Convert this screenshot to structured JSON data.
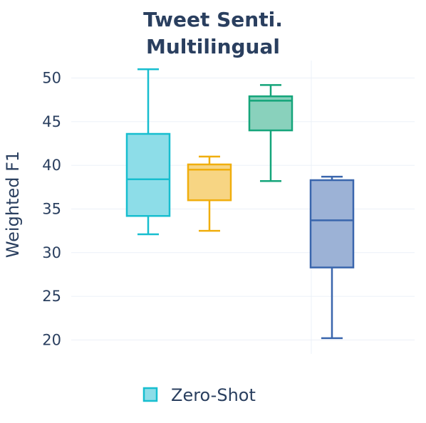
{
  "chart_data": {
    "type": "box",
    "title_lines": [
      "Tweet Senti.",
      "Multilingual"
    ],
    "xlabel": "",
    "ylabel": "Weighted F1",
    "ylim": [
      18.4,
      52.0
    ],
    "yticks": [
      20,
      25,
      30,
      35,
      40,
      45,
      50
    ],
    "grid": true,
    "legend_position": "bottom-center",
    "legend": [
      {
        "label": "Zero-Shot",
        "color": "#17becf"
      }
    ],
    "boxes": [
      {
        "min": 32.1,
        "q1": 34.2,
        "median": 38.4,
        "q3": 43.6,
        "max": 51.0,
        "color": "#17becf",
        "fill": "#8ddde8"
      },
      {
        "min": 32.5,
        "q1": 36.0,
        "median": 39.5,
        "q3": 40.1,
        "max": 41.0,
        "color": "#f0ae0d",
        "fill": "#f7d583"
      },
      {
        "min": 38.2,
        "q1": 44.0,
        "median": 47.4,
        "q3": 47.9,
        "max": 49.2,
        "color": "#14a57a",
        "fill": "#89d1bc"
      },
      {
        "min": 20.2,
        "q1": 28.3,
        "median": 33.7,
        "q3": 38.3,
        "max": 38.7,
        "color": "#3a66ad",
        "fill": "#9cb2d6"
      }
    ]
  }
}
